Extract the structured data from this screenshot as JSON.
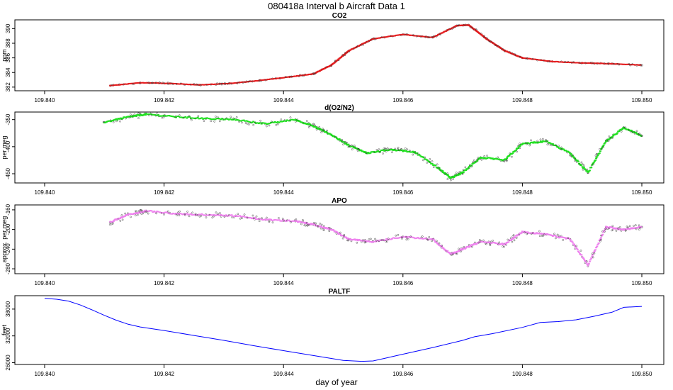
{
  "figure": {
    "title": "080418a   Interval b Aircraft Data 1",
    "xlabel": "day of year"
  },
  "chart_data": [
    {
      "type": "scatter",
      "title": "CO2",
      "ylabel": "ppm",
      "color": "#e41a1c",
      "xlim": [
        109.84,
        109.85
      ],
      "ylim": [
        381.5,
        391.2
      ],
      "xticks": [
        "109.840",
        "109.842",
        "109.844",
        "109.846",
        "109.848",
        "109.850"
      ],
      "yticks": [
        382,
        384,
        386,
        388,
        390
      ],
      "series": [
        {
          "x": [
            109.8411,
            109.8416,
            109.8421,
            109.8426,
            109.8431,
            109.8436,
            109.8441,
            109.8445,
            109.8448,
            109.8451,
            109.8455,
            109.846,
            109.8465,
            109.8469,
            109.8471,
            109.8474,
            109.8477,
            109.848,
            109.8485,
            109.849,
            109.8495,
            109.85
          ],
          "y": [
            382.2,
            382.6,
            382.5,
            382.3,
            382.5,
            382.9,
            383.4,
            383.8,
            385.0,
            387.0,
            388.6,
            389.2,
            388.8,
            390.4,
            390.5,
            388.6,
            387.0,
            386.0,
            385.5,
            385.3,
            385.2,
            385.0
          ]
        }
      ]
    },
    {
      "type": "scatter",
      "title": "d(O2/N2)",
      "ylabel": "per meg",
      "color": "#1fe01f",
      "xlim": [
        109.84,
        109.85
      ],
      "ylim": [
        -467,
        -336
      ],
      "xticks": [
        "109.840",
        "109.842",
        "109.844",
        "109.846",
        "109.848",
        "109.850"
      ],
      "yticks": [
        -350,
        -400,
        -450
      ],
      "series": [
        {
          "x": [
            109.841,
            109.8414,
            109.8417,
            109.8422,
            109.8427,
            109.8432,
            109.8437,
            109.8442,
            109.8445,
            109.8448,
            109.8451,
            109.8454,
            109.8458,
            109.8462,
            109.8466,
            109.8468,
            109.847,
            109.8473,
            109.8477,
            109.848,
            109.8484,
            109.8488,
            109.8491,
            109.8494,
            109.8497,
            109.85
          ],
          "y": [
            -355,
            -345,
            -340,
            -345,
            -348,
            -350,
            -358,
            -350,
            -362,
            -378,
            -398,
            -412,
            -405,
            -410,
            -440,
            -458,
            -448,
            -420,
            -425,
            -395,
            -390,
            -412,
            -448,
            -390,
            -365,
            -380
          ]
        }
      ]
    },
    {
      "type": "scatter",
      "title": "APO",
      "ylabel": "approx. per meg",
      "color": "#ee82ee",
      "xlim": [
        109.84,
        109.85
      ],
      "ylim": [
        -290,
        -150
      ],
      "xticks": [
        "109.840",
        "109.842",
        "109.844",
        "109.846",
        "109.848",
        "109.850"
      ],
      "yticks": [
        -160,
        -200,
        -240,
        -280
      ],
      "series": [
        {
          "x": [
            109.8411,
            109.8414,
            109.8417,
            109.8422,
            109.8427,
            109.8432,
            109.8437,
            109.8442,
            109.8445,
            109.8448,
            109.8451,
            109.8455,
            109.846,
            109.8465,
            109.8468,
            109.847,
            109.8473,
            109.8477,
            109.848,
            109.8484,
            109.8488,
            109.8491,
            109.8494,
            109.8497,
            109.85
          ],
          "y": [
            -185,
            -170,
            -162,
            -168,
            -170,
            -172,
            -180,
            -183,
            -190,
            -200,
            -220,
            -225,
            -215,
            -220,
            -250,
            -240,
            -225,
            -230,
            -205,
            -210,
            -220,
            -272,
            -195,
            -200,
            -195
          ]
        }
      ]
    },
    {
      "type": "line",
      "title": "PALTF",
      "ylabel": "feet",
      "color": "#0000ff",
      "xlim": [
        109.84,
        109.85
      ],
      "ylim": [
        25600,
        41000
      ],
      "xticks": [
        "109.840",
        "109.842",
        "109.844",
        "109.846",
        "109.848",
        "109.850"
      ],
      "yticks": [
        26000,
        32000,
        38000
      ],
      "series": [
        {
          "x": [
            109.84,
            109.8402,
            109.8404,
            109.8406,
            109.8408,
            109.841,
            109.8412,
            109.8414,
            109.8416,
            109.842,
            109.8425,
            109.843,
            109.8435,
            109.844,
            109.8445,
            109.845,
            109.8453,
            109.8455,
            109.8457,
            109.8459,
            109.8462,
            109.8465,
            109.847,
            109.8472,
            109.8475,
            109.848,
            109.8483,
            109.8486,
            109.8489,
            109.8492,
            109.8495,
            109.8497,
            109.85
          ],
          "y": [
            40400,
            40200,
            39800,
            38900,
            37800,
            36600,
            35500,
            34600,
            34000,
            33200,
            32100,
            31000,
            29800,
            28700,
            27600,
            26500,
            26300,
            26400,
            27000,
            27600,
            28500,
            29400,
            31000,
            31800,
            32500,
            33900,
            35000,
            35200,
            35600,
            36400,
            37300,
            38400,
            38600
          ]
        }
      ]
    }
  ]
}
